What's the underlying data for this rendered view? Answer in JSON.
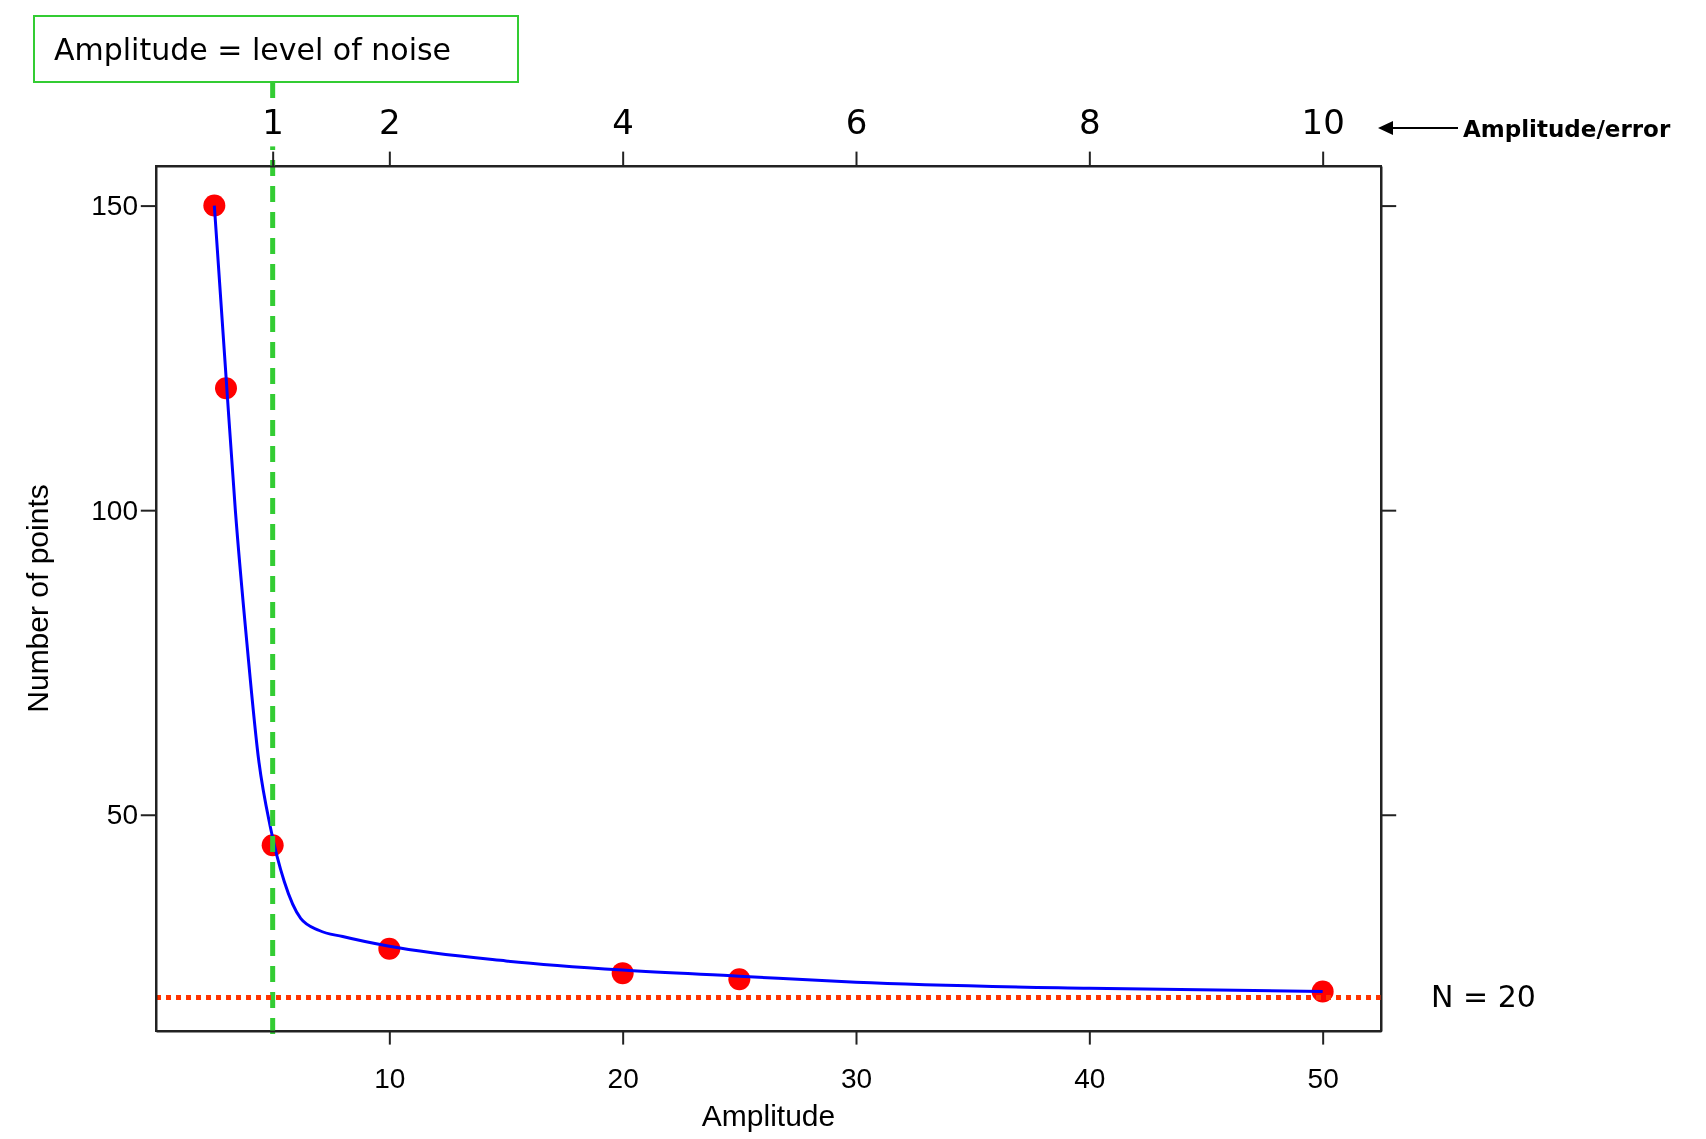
{
  "chart_data": {
    "type": "scatter",
    "xlabel": "Amplitude",
    "ylabel": "Number of points",
    "x2label": "Amplitude/error",
    "xlim": [
      0,
      52.5
    ],
    "ylim": [
      14.5,
      156.5
    ],
    "x2lim": [
      0,
      10.5
    ],
    "xticks": [
      10,
      20,
      30,
      40,
      50
    ],
    "x2ticks": [
      1,
      2,
      4,
      6,
      8,
      10
    ],
    "yticks": [
      50,
      100,
      150
    ],
    "grid": false,
    "series": [
      {
        "type": "line",
        "color": "#0000ff",
        "line_style": "solid",
        "x": [
          2.5,
          3,
          3.4,
          3.9,
          4.4,
          4.9,
          5.5,
          6.2,
          7,
          8,
          10,
          15,
          20,
          25,
          30,
          40,
          50
        ],
        "values": [
          150,
          122,
          100,
          78,
          59,
          48,
          39,
          33,
          31,
          30,
          28.4,
          26,
          24.5,
          23.5,
          22.5,
          21.5,
          21
        ]
      },
      {
        "type": "scatter",
        "color": "#ff0000",
        "marker": "circle",
        "x": [
          2.5,
          3,
          5,
          10,
          20,
          25,
          50
        ],
        "values": [
          150,
          120,
          45,
          28,
          24,
          23,
          21
        ]
      }
    ],
    "ref_lines": [
      {
        "axis": "x",
        "value": 5,
        "label": "Amplitude = level of noise",
        "color": "#33cc33",
        "line_style": "dashed"
      },
      {
        "axis": "y",
        "value": 20,
        "label": "N = 20",
        "color": "#ff3300",
        "line_style": "dotted"
      }
    ]
  }
}
